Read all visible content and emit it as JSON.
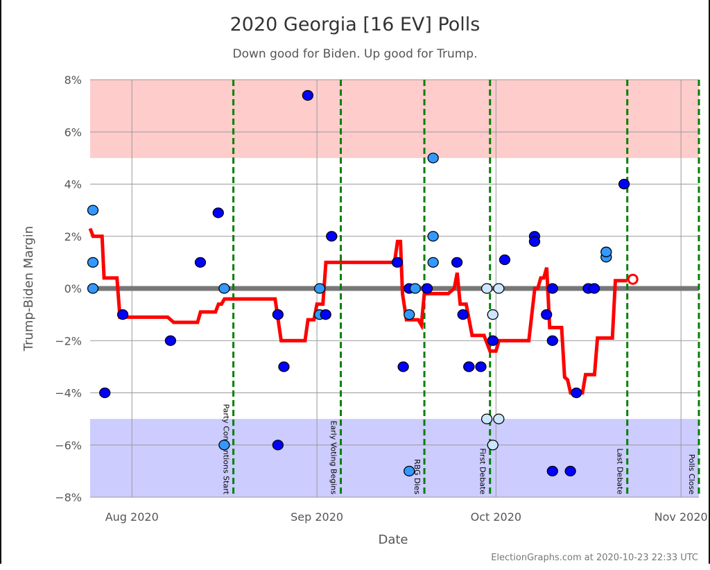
{
  "chart_data": {
    "type": "scatter",
    "title": "2020 Georgia [16 EV] Polls",
    "subtitle": "Down good for Biden. Up good for Trump.",
    "xlabel": "Date",
    "ylabel": "Trump-Biden Margin",
    "footer": "ElectionGraphs.com at 2020-10-23 22:33 UTC",
    "xlim": [
      "2020-07-25",
      "2020-11-04"
    ],
    "ylim": [
      -8,
      8
    ],
    "grid": true,
    "y_ticks": [
      8,
      6,
      4,
      2,
      0,
      -2,
      -4,
      -6,
      -8
    ],
    "y_tick_labels": [
      "8%",
      "6%",
      "4%",
      "2%",
      "0%",
      "−2%",
      "−4%",
      "−6%",
      "−8%"
    ],
    "x_ticks": [
      {
        "date": "2020-08-01",
        "label": "Aug 2020"
      },
      {
        "date": "2020-09-01",
        "label": "Sep 2020"
      },
      {
        "date": "2020-10-01",
        "label": "Oct 2020"
      },
      {
        "date": "2020-11-01",
        "label": "Nov 2020"
      }
    ],
    "bands": [
      {
        "from": 5,
        "to": 8,
        "color": "#ffcccc"
      },
      {
        "from": -8,
        "to": -5,
        "color": "#ccccff"
      }
    ],
    "events": [
      {
        "date": "2020-08-17",
        "label": "Party Conventions Start"
      },
      {
        "date": "2020-09-04",
        "label": "Early Voting Begins"
      },
      {
        "date": "2020-09-18",
        "label": "RBG Dies"
      },
      {
        "date": "2020-09-29",
        "label": "First Debate"
      },
      {
        "date": "2020-10-22",
        "label": "Last Debate"
      },
      {
        "date": "2020-11-03",
        "label": "Polls Close"
      }
    ],
    "colors": {
      "dark": "#0000ff",
      "medium": "#3399ff",
      "light": "#cce6ff",
      "average": "#ff0000",
      "event": "#008000",
      "zero": "#777777"
    },
    "points": [
      {
        "date": "2020-07-25",
        "value": 3,
        "shade": "medium"
      },
      {
        "date": "2020-07-25",
        "value": 1,
        "shade": "medium"
      },
      {
        "date": "2020-07-25",
        "value": 0,
        "shade": "medium"
      },
      {
        "date": "2020-07-27",
        "value": -4,
        "shade": "dark"
      },
      {
        "date": "2020-07-30",
        "value": -1,
        "shade": "dark"
      },
      {
        "date": "2020-08-07",
        "value": -2,
        "shade": "dark"
      },
      {
        "date": "2020-08-12",
        "value": 1,
        "shade": "dark"
      },
      {
        "date": "2020-08-15",
        "value": 2.9,
        "shade": "dark"
      },
      {
        "date": "2020-08-16",
        "value": 0,
        "shade": "medium"
      },
      {
        "date": "2020-08-16",
        "value": -6,
        "shade": "medium"
      },
      {
        "date": "2020-08-25",
        "value": -1,
        "shade": "dark"
      },
      {
        "date": "2020-08-26",
        "value": -3,
        "shade": "dark"
      },
      {
        "date": "2020-08-25",
        "value": -6,
        "shade": "dark"
      },
      {
        "date": "2020-08-30",
        "value": 7.4,
        "shade": "dark"
      },
      {
        "date": "2020-09-01",
        "value": 0,
        "shade": "medium"
      },
      {
        "date": "2020-09-01",
        "value": -1,
        "shade": "medium"
      },
      {
        "date": "2020-09-02",
        "value": -1,
        "shade": "dark"
      },
      {
        "date": "2020-09-03",
        "value": 2,
        "shade": "dark"
      },
      {
        "date": "2020-09-14",
        "value": 1,
        "shade": "dark"
      },
      {
        "date": "2020-09-15",
        "value": -3,
        "shade": "dark"
      },
      {
        "date": "2020-09-16",
        "value": 0,
        "shade": "dark"
      },
      {
        "date": "2020-09-16",
        "value": -1,
        "shade": "medium"
      },
      {
        "date": "2020-09-17",
        "value": 0,
        "shade": "medium"
      },
      {
        "date": "2020-09-16",
        "value": -7,
        "shade": "medium"
      },
      {
        "date": "2020-09-19",
        "value": 0,
        "shade": "dark"
      },
      {
        "date": "2020-09-20",
        "value": 5,
        "shade": "medium"
      },
      {
        "date": "2020-09-20",
        "value": 2,
        "shade": "medium"
      },
      {
        "date": "2020-09-20",
        "value": 1,
        "shade": "medium"
      },
      {
        "date": "2020-09-24",
        "value": 1,
        "shade": "dark"
      },
      {
        "date": "2020-09-25",
        "value": -1,
        "shade": "dark"
      },
      {
        "date": "2020-09-26",
        "value": -3,
        "shade": "dark"
      },
      {
        "date": "2020-09-26",
        "value": -3,
        "shade": "dark"
      },
      {
        "date": "2020-09-28",
        "value": -3,
        "shade": "dark"
      },
      {
        "date": "2020-09-29",
        "value": 0,
        "shade": "light"
      },
      {
        "date": "2020-09-29",
        "value": -5,
        "shade": "light"
      },
      {
        "date": "2020-09-30",
        "value": -6,
        "shade": "light"
      },
      {
        "date": "2020-09-30",
        "value": -1,
        "shade": "light"
      },
      {
        "date": "2020-09-30",
        "value": -2,
        "shade": "dark"
      },
      {
        "date": "2020-10-01",
        "value": 0,
        "shade": "light"
      },
      {
        "date": "2020-10-01",
        "value": -5,
        "shade": "light"
      },
      {
        "date": "2020-10-02",
        "value": 1.1,
        "shade": "dark"
      },
      {
        "date": "2020-10-07",
        "value": 2,
        "shade": "dark"
      },
      {
        "date": "2020-10-07",
        "value": 1.8,
        "shade": "dark"
      },
      {
        "date": "2020-10-09",
        "value": -1,
        "shade": "dark"
      },
      {
        "date": "2020-10-10",
        "value": 0,
        "shade": "dark"
      },
      {
        "date": "2020-10-10",
        "value": -2,
        "shade": "dark"
      },
      {
        "date": "2020-10-10",
        "value": -7,
        "shade": "dark"
      },
      {
        "date": "2020-10-13",
        "value": -7,
        "shade": "dark"
      },
      {
        "date": "2020-10-14",
        "value": -4,
        "shade": "dark"
      },
      {
        "date": "2020-10-16",
        "value": 0,
        "shade": "dark"
      },
      {
        "date": "2020-10-17",
        "value": 0,
        "shade": "dark"
      },
      {
        "date": "2020-10-19",
        "value": 1.2,
        "shade": "medium"
      },
      {
        "date": "2020-10-19",
        "value": 1.4,
        "shade": "medium"
      },
      {
        "date": "2020-10-22",
        "value": 4,
        "shade": "dark"
      }
    ],
    "average": [
      [
        "2020-07-25T00:00",
        2.3
      ],
      [
        "2020-07-25T12:00",
        2.0
      ],
      [
        "2020-07-27T00:00",
        2.0
      ],
      [
        "2020-07-27T08:00",
        0.4
      ],
      [
        "2020-07-29T12:00",
        0.4
      ],
      [
        "2020-07-30T00:00",
        -1.1
      ],
      [
        "2020-08-07T00:00",
        -1.1
      ],
      [
        "2020-08-08T00:00",
        -1.3
      ],
      [
        "2020-08-12T00:00",
        -1.3
      ],
      [
        "2020-08-12T12:00",
        -0.9
      ],
      [
        "2020-08-15T00:00",
        -0.9
      ],
      [
        "2020-08-15T12:00",
        -0.6
      ],
      [
        "2020-08-16T00:00",
        -0.6
      ],
      [
        "2020-08-16T12:00",
        -0.4
      ],
      [
        "2020-08-25T00:00",
        -0.4
      ],
      [
        "2020-08-26T00:00",
        -2.0
      ],
      [
        "2020-08-30T00:00",
        -2.0
      ],
      [
        "2020-08-30T12:00",
        -1.2
      ],
      [
        "2020-08-31T12:00",
        -1.2
      ],
      [
        "2020-09-01T00:00",
        -0.6
      ],
      [
        "2020-09-02T00:00",
        -0.6
      ],
      [
        "2020-09-02T12:00",
        1.0
      ],
      [
        "2020-09-14T00:00",
        1.0
      ],
      [
        "2020-09-14T12:00",
        1.8
      ],
      [
        "2020-09-15T00:00",
        1.8
      ],
      [
        "2020-09-15T08:00",
        -0.2
      ],
      [
        "2020-09-16T00:00",
        -1.2
      ],
      [
        "2020-09-18T00:00",
        -1.2
      ],
      [
        "2020-09-18T12:00",
        -1.4
      ],
      [
        "2020-09-19T00:00",
        -0.2
      ],
      [
        "2020-09-23T00:00",
        -0.2
      ],
      [
        "2020-09-24T00:00",
        0.0
      ],
      [
        "2020-09-24T12:00",
        0.6
      ],
      [
        "2020-09-25T00:00",
        -0.6
      ],
      [
        "2020-09-26T00:00",
        -0.6
      ],
      [
        "2020-09-27T00:00",
        -1.8
      ],
      [
        "2020-09-29T00:00",
        -1.8
      ],
      [
        "2020-09-30T00:00",
        -2.4
      ],
      [
        "2020-10-01T00:00",
        -2.4
      ],
      [
        "2020-10-01T12:00",
        -2.0
      ],
      [
        "2020-10-06T12:00",
        -2.0
      ],
      [
        "2020-10-07T12:00",
        0.0
      ],
      [
        "2020-10-08T00:00",
        0.0
      ],
      [
        "2020-10-08T12:00",
        0.4
      ],
      [
        "2020-10-09T00:00",
        0.4
      ],
      [
        "2020-10-09T12:00",
        0.8
      ],
      [
        "2020-10-10T00:00",
        -1.5
      ],
      [
        "2020-10-12T00:00",
        -1.5
      ],
      [
        "2020-10-12T12:00",
        -3.4
      ],
      [
        "2020-10-13T00:00",
        -3.5
      ],
      [
        "2020-10-13T12:00",
        -4.0
      ],
      [
        "2020-10-15T12:00",
        -4.0
      ],
      [
        "2020-10-16T00:00",
        -3.3
      ],
      [
        "2020-10-17T12:00",
        -3.3
      ],
      [
        "2020-10-18T00:00",
        -1.9
      ],
      [
        "2020-10-20T12:00",
        -1.9
      ],
      [
        "2020-10-21T00:00",
        0.3
      ],
      [
        "2020-10-23T00:00",
        0.3
      ]
    ],
    "current_average": {
      "date": "2020-10-23",
      "value": 0.3
    }
  }
}
